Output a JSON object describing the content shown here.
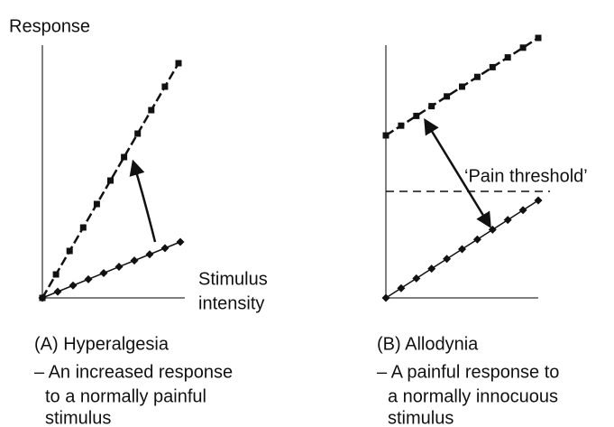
{
  "y_axis_label": "Response",
  "x_axis_label": [
    "Stimulus",
    "intensity"
  ],
  "panel_a": {
    "title": "(A) Hyperalgesia",
    "description": [
      "– An increased response",
      "to a normally painful",
      "stimulus"
    ]
  },
  "panel_b": {
    "title": "(B) Allodynia",
    "threshold_label": "‘Pain threshold’",
    "description": [
      "– A painful  response to",
      "a normally innocuous",
      "stimulus"
    ]
  }
}
